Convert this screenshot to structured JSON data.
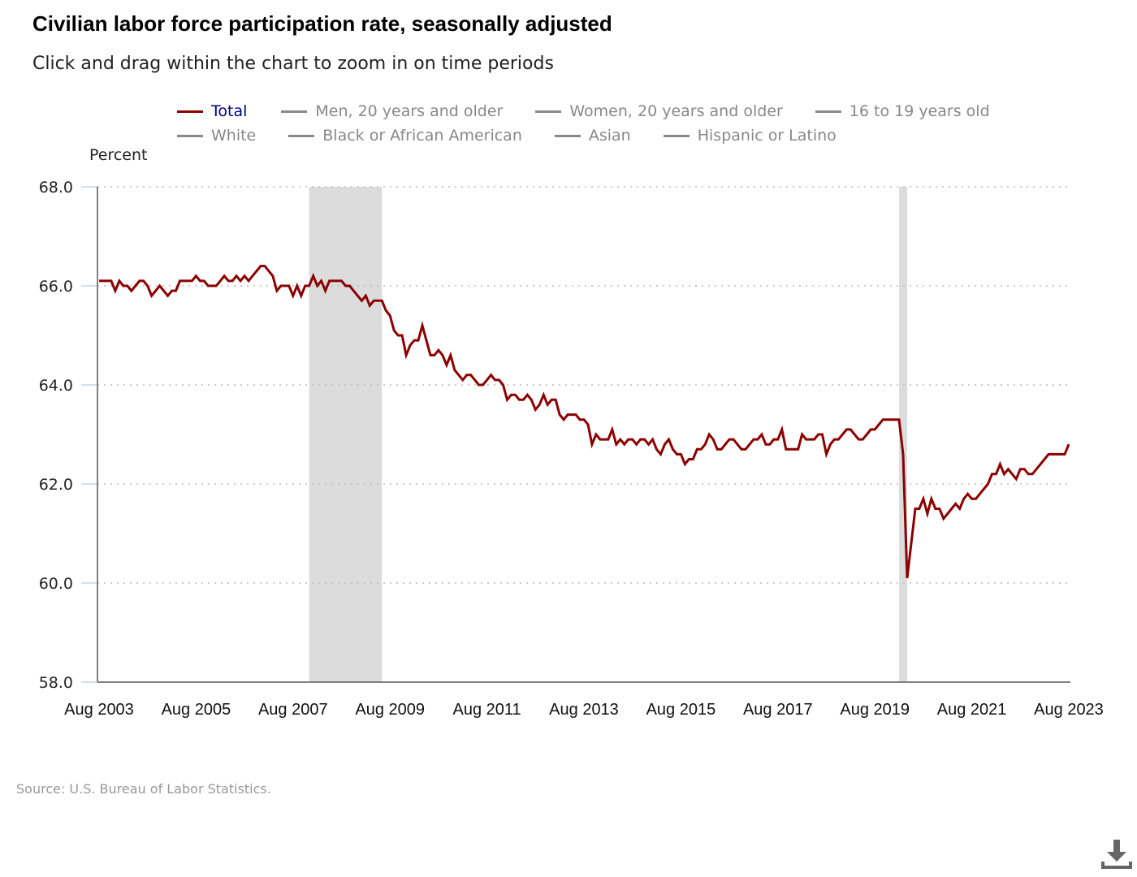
{
  "header": {
    "title": "Civilian labor force participation rate, seasonally adjusted",
    "subtitle": "Click and drag within the chart to zoom in on time periods"
  },
  "legend": {
    "items": [
      {
        "label": "Total",
        "active": true
      },
      {
        "label": "Men, 20 years and older",
        "active": false
      },
      {
        "label": "Women, 20 years and older",
        "active": false
      },
      {
        "label": "16 to 19 years old",
        "active": false
      },
      {
        "label": "White",
        "active": false
      },
      {
        "label": "Black or African American",
        "active": false
      },
      {
        "label": "Asian",
        "active": false
      },
      {
        "label": "Hispanic or Latino",
        "active": false
      }
    ]
  },
  "footer": {
    "source": "Source: U.S. Bureau of Labor Statistics.",
    "download_icon": "download-icon"
  },
  "colors": {
    "series_total": "#8b0000",
    "series_inactive": "#888888",
    "legend_active_text": "#000080",
    "recession_band": "#dcdcdc",
    "grid": "#bbbbbb",
    "axis": "#808080"
  },
  "chart_data": {
    "type": "line",
    "title": "Civilian labor force participation rate, seasonally adjusted",
    "xlabel": "",
    "ylabel": "Percent",
    "ylim": [
      58.0,
      68.0
    ],
    "yticks": [
      "58.0",
      "60.0",
      "62.0",
      "64.0",
      "66.0",
      "68.0"
    ],
    "xticks": [
      "Aug 2003",
      "Aug 2005",
      "Aug 2007",
      "Aug 2009",
      "Aug 2011",
      "Aug 2013",
      "Aug 2015",
      "Aug 2017",
      "Aug 2019",
      "Aug 2021",
      "Aug 2023"
    ],
    "x_start": "Aug 2003",
    "x_end": "Aug 2023",
    "frequency": "monthly",
    "grid": "horizontal dotted",
    "legend_placement": "top",
    "recessions": [
      {
        "start": "Dec 2007",
        "end": "Jun 2009"
      },
      {
        "start": "Feb 2020",
        "end": "Apr 2020"
      }
    ],
    "series": [
      {
        "name": "Total",
        "values": [
          66.1,
          66.1,
          66.1,
          66.1,
          65.9,
          66.1,
          66.0,
          66.0,
          65.9,
          66.0,
          66.1,
          66.1,
          66.0,
          65.8,
          65.9,
          66.0,
          65.9,
          65.8,
          65.9,
          65.9,
          66.1,
          66.1,
          66.1,
          66.1,
          66.2,
          66.1,
          66.1,
          66.0,
          66.0,
          66.0,
          66.1,
          66.2,
          66.1,
          66.1,
          66.2,
          66.1,
          66.2,
          66.1,
          66.2,
          66.3,
          66.4,
          66.4,
          66.3,
          66.2,
          65.9,
          66.0,
          66.0,
          66.0,
          65.8,
          66.0,
          65.8,
          66.0,
          66.0,
          66.2,
          66.0,
          66.1,
          65.9,
          66.1,
          66.1,
          66.1,
          66.1,
          66.0,
          66.0,
          65.9,
          65.8,
          65.7,
          65.8,
          65.6,
          65.7,
          65.7,
          65.7,
          65.5,
          65.4,
          65.1,
          65.0,
          65.0,
          64.6,
          64.8,
          64.9,
          64.9,
          65.2,
          64.9,
          64.6,
          64.6,
          64.7,
          64.6,
          64.4,
          64.6,
          64.3,
          64.2,
          64.1,
          64.2,
          64.2,
          64.1,
          64.0,
          64.0,
          64.1,
          64.2,
          64.1,
          64.1,
          64.0,
          63.7,
          63.8,
          63.8,
          63.7,
          63.7,
          63.8,
          63.7,
          63.5,
          63.6,
          63.8,
          63.6,
          63.7,
          63.7,
          63.4,
          63.3,
          63.4,
          63.4,
          63.4,
          63.3,
          63.3,
          63.2,
          62.8,
          63.0,
          62.9,
          62.9,
          62.9,
          63.1,
          62.8,
          62.9,
          62.8,
          62.9,
          62.9,
          62.8,
          62.9,
          62.9,
          62.8,
          62.9,
          62.7,
          62.6,
          62.8,
          62.9,
          62.7,
          62.6,
          62.6,
          62.4,
          62.5,
          62.5,
          62.7,
          62.7,
          62.8,
          63.0,
          62.9,
          62.7,
          62.7,
          62.8,
          62.9,
          62.9,
          62.8,
          62.7,
          62.7,
          62.8,
          62.9,
          62.9,
          63.0,
          62.8,
          62.8,
          62.9,
          62.9,
          63.1,
          62.7,
          62.7,
          62.7,
          62.7,
          63.0,
          62.9,
          62.9,
          62.9,
          63.0,
          63.0,
          62.6,
          62.8,
          62.9,
          62.9,
          63.0,
          63.1,
          63.1,
          63.0,
          62.9,
          62.9,
          63.0,
          63.1,
          63.1,
          63.2,
          63.3,
          63.3,
          63.3,
          63.3,
          63.3,
          62.6,
          60.1,
          60.8,
          61.5,
          61.5,
          61.7,
          61.4,
          61.7,
          61.5,
          61.5,
          61.3,
          61.4,
          61.5,
          61.6,
          61.5,
          61.7,
          61.8,
          61.7,
          61.7,
          61.8,
          61.9,
          62.0,
          62.2,
          62.2,
          62.4,
          62.2,
          62.3,
          62.2,
          62.1,
          62.3,
          62.3,
          62.2,
          62.2,
          62.3,
          62.4,
          62.5,
          62.6,
          62.6,
          62.6,
          62.6,
          62.6,
          62.8
        ]
      }
    ]
  }
}
